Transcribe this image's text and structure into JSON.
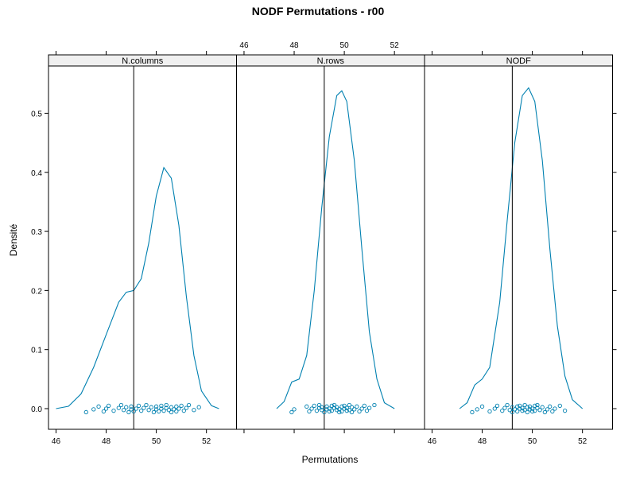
{
  "chart_data": {
    "type": "density",
    "title": "NODF Permutations - r00",
    "xlabel": "Permutations",
    "ylabel": "Densité",
    "xlim": [
      45.7,
      53.2
    ],
    "ylim": [
      -0.035,
      0.58
    ],
    "xticks": [
      46,
      48,
      50,
      52
    ],
    "yticks": [
      0.0,
      0.1,
      0.2,
      0.3,
      0.4,
      0.5
    ],
    "ytick_labels": [
      "0.0",
      "0.1",
      "0.2",
      "0.3",
      "0.4",
      "0.5"
    ],
    "bottom_ticks_panels": [
      0,
      2
    ],
    "top_ticks_panels": [
      1
    ],
    "grid": false,
    "panels": [
      {
        "name": "N.columns",
        "observed": 49.1,
        "curve": [
          [
            46.0,
            0.0
          ],
          [
            46.5,
            0.004
          ],
          [
            47.0,
            0.025
          ],
          [
            47.5,
            0.07
          ],
          [
            48.0,
            0.125
          ],
          [
            48.5,
            0.18
          ],
          [
            48.8,
            0.197
          ],
          [
            49.1,
            0.2
          ],
          [
            49.4,
            0.22
          ],
          [
            49.7,
            0.28
          ],
          [
            50.0,
            0.36
          ],
          [
            50.3,
            0.408
          ],
          [
            50.6,
            0.39
          ],
          [
            50.9,
            0.31
          ],
          [
            51.2,
            0.19
          ],
          [
            51.5,
            0.09
          ],
          [
            51.8,
            0.03
          ],
          [
            52.2,
            0.005
          ],
          [
            52.5,
            0.0
          ]
        ],
        "points": [
          47.2,
          47.5,
          47.7,
          47.9,
          48.0,
          48.1,
          48.3,
          48.5,
          48.6,
          48.7,
          48.8,
          48.9,
          49.0,
          49.0,
          49.1,
          49.2,
          49.3,
          49.4,
          49.5,
          49.6,
          49.7,
          49.8,
          49.9,
          50.0,
          50.0,
          50.1,
          50.2,
          50.2,
          50.3,
          50.4,
          50.4,
          50.5,
          50.6,
          50.6,
          50.7,
          50.8,
          50.8,
          50.9,
          51.0,
          51.1,
          51.2,
          51.3,
          51.5,
          51.7
        ]
      },
      {
        "name": "N.rows",
        "observed": 49.2,
        "curve": [
          [
            47.3,
            0.0
          ],
          [
            47.6,
            0.012
          ],
          [
            47.9,
            0.045
          ],
          [
            48.2,
            0.05
          ],
          [
            48.5,
            0.09
          ],
          [
            48.8,
            0.2
          ],
          [
            49.1,
            0.34
          ],
          [
            49.4,
            0.46
          ],
          [
            49.7,
            0.53
          ],
          [
            49.9,
            0.538
          ],
          [
            50.1,
            0.52
          ],
          [
            50.4,
            0.42
          ],
          [
            50.7,
            0.27
          ],
          [
            51.0,
            0.13
          ],
          [
            51.3,
            0.05
          ],
          [
            51.6,
            0.01
          ],
          [
            52.0,
            0.0
          ]
        ],
        "points": [
          47.9,
          48.0,
          48.5,
          48.6,
          48.7,
          48.8,
          48.9,
          49.0,
          49.0,
          49.1,
          49.1,
          49.2,
          49.3,
          49.3,
          49.4,
          49.4,
          49.5,
          49.5,
          49.6,
          49.6,
          49.7,
          49.7,
          49.8,
          49.8,
          49.9,
          49.9,
          50.0,
          50.0,
          50.1,
          50.1,
          50.2,
          50.2,
          50.3,
          50.3,
          50.4,
          50.5,
          50.6,
          50.7,
          50.8,
          50.9,
          51.0,
          51.2
        ]
      },
      {
        "name": "NODF",
        "observed": 49.2,
        "curve": [
          [
            47.1,
            0.0
          ],
          [
            47.4,
            0.01
          ],
          [
            47.7,
            0.04
          ],
          [
            48.0,
            0.05
          ],
          [
            48.3,
            0.07
          ],
          [
            48.7,
            0.18
          ],
          [
            49.0,
            0.32
          ],
          [
            49.3,
            0.45
          ],
          [
            49.6,
            0.53
          ],
          [
            49.85,
            0.543
          ],
          [
            50.1,
            0.52
          ],
          [
            50.4,
            0.42
          ],
          [
            50.7,
            0.27
          ],
          [
            51.0,
            0.14
          ],
          [
            51.3,
            0.055
          ],
          [
            51.6,
            0.015
          ],
          [
            52.0,
            0.0
          ]
        ],
        "points": [
          47.6,
          47.8,
          48.0,
          48.3,
          48.5,
          48.6,
          48.8,
          48.9,
          49.0,
          49.1,
          49.2,
          49.2,
          49.3,
          49.4,
          49.4,
          49.5,
          49.5,
          49.6,
          49.6,
          49.7,
          49.7,
          49.8,
          49.8,
          49.9,
          49.9,
          50.0,
          50.0,
          50.1,
          50.1,
          50.2,
          50.2,
          50.3,
          50.4,
          50.5,
          50.6,
          50.7,
          50.8,
          50.9,
          51.1,
          51.3
        ]
      }
    ]
  }
}
